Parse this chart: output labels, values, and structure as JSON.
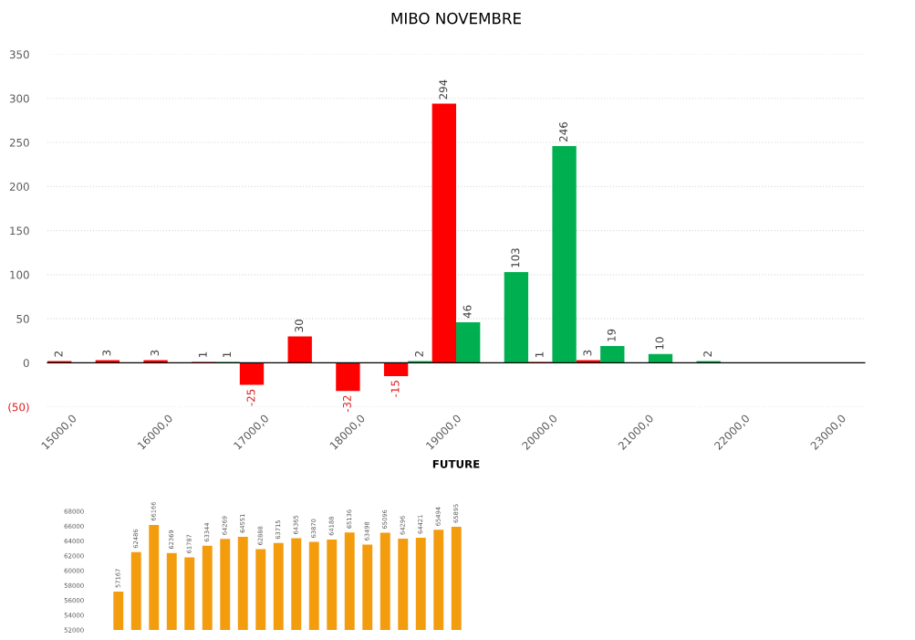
{
  "chart_data": [
    {
      "type": "bar",
      "title": "MIBO NOVEMBRE",
      "xlabel": "FUTURE",
      "categories": [
        "15000,0",
        null,
        "16000,0",
        null,
        "17000,0",
        null,
        "18000,0",
        null,
        "19000,0",
        null,
        "20000,0",
        null,
        "21000,0",
        null,
        "22000,0",
        null,
        "23000,0"
      ],
      "series": [
        {
          "color": "#ff0000",
          "values": [
            2,
            3,
            3,
            1,
            -25,
            30,
            -32,
            -15,
            294,
            null,
            1,
            3,
            null,
            null,
            null,
            null,
            null
          ]
        },
        {
          "color": "#00b050",
          "values": [
            null,
            null,
            null,
            1,
            null,
            null,
            null,
            2,
            46,
            103,
            246,
            19,
            10,
            2,
            null,
            null,
            null
          ]
        }
      ],
      "ylim": [
        -50,
        350
      ],
      "yticks": [
        {
          "value": -50,
          "label": "(50)"
        },
        0,
        50,
        100,
        150,
        200,
        250,
        300,
        350
      ],
      "grid": "y",
      "data_labels": true
    },
    {
      "type": "bar",
      "categories": [
        null,
        null,
        null,
        null,
        null,
        null,
        null,
        null,
        null,
        null,
        null,
        null,
        null,
        null,
        null,
        null,
        null,
        null,
        null,
        null
      ],
      "values": [
        57167,
        62486,
        66166,
        62369,
        61787,
        63344,
        64269,
        64551,
        62888,
        63715,
        64365,
        63870,
        64188,
        65136,
        63498,
        65096,
        64296,
        64421,
        65494,
        65895
      ],
      "color": "#f39c0e",
      "ylim": [
        52000,
        68000
      ],
      "yticks": [
        52000,
        54000,
        56000,
        58000,
        60000,
        62000,
        64000,
        66000,
        68000
      ],
      "data_labels": true,
      "tick_labels": "y"
    }
  ]
}
